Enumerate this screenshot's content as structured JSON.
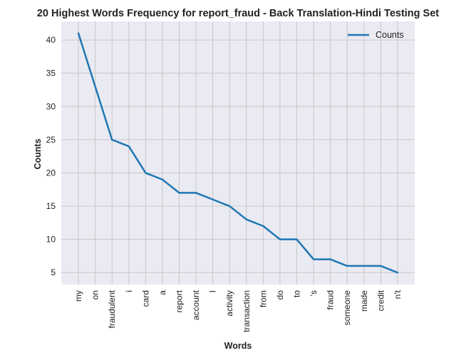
{
  "chart_data": {
    "type": "line",
    "title": "20 Highest Words Frequency for report_fraud - Back Translation-Hindi Testing Set",
    "xlabel": "Words",
    "ylabel": "Counts",
    "categories": [
      "my",
      "on",
      "fraudulent",
      "i",
      "card",
      "a",
      "report",
      "account",
      "I",
      "activity",
      "transaction",
      "from",
      "do",
      "to",
      "'s",
      "fraud",
      "someone",
      "made",
      "credit",
      "n't"
    ],
    "series": [
      {
        "name": "Counts",
        "values": [
          41,
          33,
          25,
          24,
          20,
          19,
          17,
          17,
          16,
          15,
          13,
          12,
          10,
          10,
          7,
          7,
          6,
          6,
          6,
          5
        ],
        "color": "#1f77b4"
      }
    ],
    "yticks": [
      5,
      10,
      15,
      20,
      25,
      30,
      35,
      40
    ],
    "ylim": [
      3.2,
      42.8
    ],
    "grid": true,
    "legend": "top-right",
    "style": {
      "plot_background": "#eaeaf2",
      "grid_color": "#c8c8c8",
      "line_color": "#1f77b4"
    }
  }
}
